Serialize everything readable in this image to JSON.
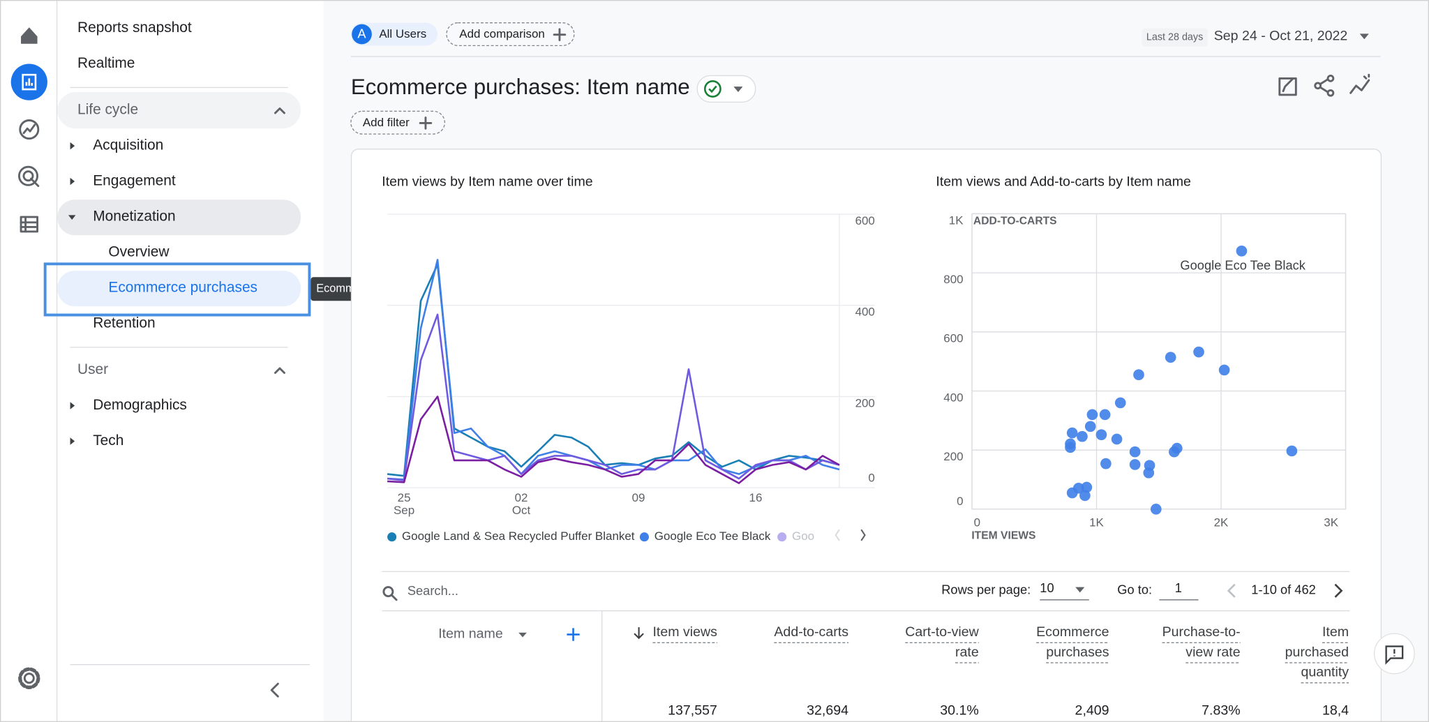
{
  "sidebar": {
    "reports_snapshot": "Reports snapshot",
    "realtime": "Realtime",
    "life_cycle": "Life cycle",
    "acquisition": "Acquisition",
    "engagement": "Engagement",
    "monetization": "Monetization",
    "overview": "Overview",
    "ecommerce_purchases": "Ecommerce purchases",
    "retention": "Retention",
    "user": "User",
    "demographics": "Demographics",
    "tech": "Tech"
  },
  "tooltip": "Ecommerce purchases",
  "header": {
    "segment_badge": "A",
    "segment": "All Users",
    "add_comparison": "Add comparison",
    "date_range_label": "Last 28 days",
    "date_range": "Sep 24 - Oct 21, 2022",
    "title": "Ecommerce purchases: Item name",
    "add_filter": "Add filter"
  },
  "chart_data": [
    {
      "type": "line",
      "title": "Item views by Item name over time",
      "categories": [
        null,
        "25 Sep",
        null,
        null,
        null,
        null,
        null,
        null,
        "02 Oct",
        null,
        null,
        null,
        null,
        null,
        null,
        "09",
        null,
        null,
        null,
        null,
        null,
        null,
        "16",
        null,
        null,
        null,
        null,
        null
      ],
      "series": [
        {
          "name": "Google Land & Sea Recycled Puffer Blanket",
          "color": "#1a7fb5",
          "values": [
            30,
            26,
            410,
            490,
            130,
            110,
            90,
            80,
            46,
            80,
            116,
            110,
            90,
            50,
            54,
            50,
            64,
            70,
            100,
            70,
            46,
            60,
            40,
            60,
            70,
            66,
            60,
            50
          ]
        },
        {
          "name": "Google Eco Tee Black",
          "color": "#3f7fe8",
          "values": [
            20,
            18,
            350,
            500,
            120,
            130,
            90,
            70,
            30,
            70,
            80,
            70,
            60,
            40,
            50,
            50,
            40,
            60,
            60,
            84,
            40,
            30,
            46,
            60,
            60,
            70,
            50,
            40
          ]
        },
        {
          "name": "Goo",
          "color": "#6f5be0",
          "values": [
            20,
            16,
            280,
            380,
            80,
            70,
            60,
            70,
            30,
            60,
            70,
            70,
            60,
            50,
            30,
            40,
            40,
            60,
            260,
            60,
            40,
            20,
            50,
            60,
            60,
            40,
            60,
            50
          ]
        },
        {
          "color": "#7b1fa2",
          "values": [
            14,
            12,
            150,
            200,
            60,
            60,
            60,
            40,
            24,
            56,
            64,
            56,
            50,
            40,
            24,
            30,
            60,
            60,
            96,
            50,
            30,
            10,
            40,
            50,
            56,
            40,
            70,
            50
          ]
        }
      ],
      "ylim": [
        0,
        600
      ],
      "yticks": [
        0,
        200,
        400,
        600
      ],
      "grid": true,
      "y_axis_side": "right",
      "legend": "bottom"
    },
    {
      "type": "scatter",
      "title": "Item views and Add-to-carts by Item name",
      "x_label": "ITEM VIEWS",
      "y_label": "ADD-TO-CARTS",
      "annotation": "Google Eco Tee Black",
      "color": "#3f7fe8",
      "x": [
        2165,
        1821,
        1595,
        2026,
        1339,
        1192,
        966,
        1068,
        951,
        805,
        885,
        1039,
        1163,
        790,
        790,
        1309,
        2568,
        1646,
        1624,
        1075,
        1309,
        1426,
        1419,
        921,
        856,
        805,
        907,
        1478
      ],
      "y": [
        874,
        532,
        514,
        471,
        455,
        360,
        320,
        320,
        280,
        258,
        246,
        252,
        237,
        221,
        209,
        194,
        197,
        206,
        194,
        154,
        151,
        148,
        123,
        74,
        71,
        55,
        46,
        0
      ],
      "xlim": [
        0,
        3000
      ],
      "xticks": [
        0,
        {
          "value": 1000,
          "label": "1K"
        },
        {
          "value": 2000,
          "label": "2K"
        },
        {
          "value": 3000,
          "label": "3K"
        }
      ],
      "ylim": [
        0,
        1000
      ],
      "yticks": [
        0,
        200,
        400,
        600,
        800,
        {
          "value": 1000,
          "label": "1K"
        }
      ],
      "grid": true
    }
  ],
  "table": {
    "search_placeholder": "Search...",
    "rows_per_page_label": "Rows per page:",
    "rows_per_page": "10",
    "go_to_label": "Go to:",
    "go_to": "1",
    "range": "1-10 of 462",
    "dimension": "Item name",
    "columns": [
      {
        "header": [
          "Item views"
        ],
        "total": "137,557"
      },
      {
        "header": [
          "Add-to-carts"
        ],
        "total": "32,694"
      },
      {
        "header": [
          "Cart-to-view",
          "rate"
        ],
        "total": "30.1%"
      },
      {
        "header": [
          "Ecommerce",
          "purchases"
        ],
        "total": "2,409"
      },
      {
        "header": [
          "Purchase-to-",
          "view rate"
        ],
        "total": "7.83%"
      },
      {
        "header": [
          "Item",
          "purchased",
          "quantity"
        ],
        "total": "18,4"
      }
    ]
  }
}
